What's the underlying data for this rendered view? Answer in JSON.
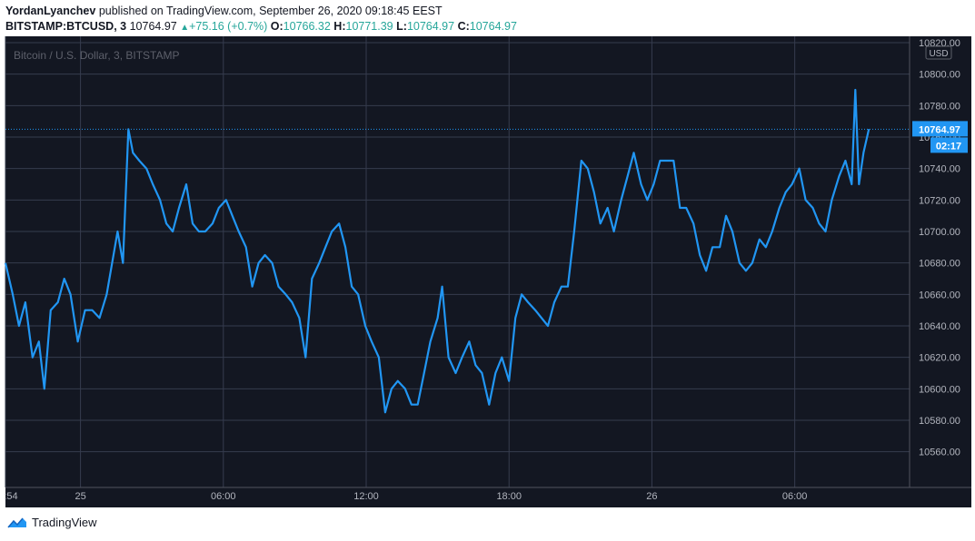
{
  "header": {
    "author": "YordanLyanchev",
    "published_text": "published on TradingView.com, September 26, 2020 09:18:45 EEST"
  },
  "ohlc": {
    "symbol": "BITSTAMP:BTCUSD, 3",
    "last": "10764.97",
    "change": "+75.16 (+0.7%)",
    "o_label": "O:",
    "o": "10766.32",
    "h_label": "H:",
    "h": "10771.39",
    "l_label": "L:",
    "l": "10764.97",
    "c_label": "C:",
    "c": "10764.97"
  },
  "footer": {
    "brand": "TradingView",
    "logo_icon": "tradingview-logo-icon"
  },
  "colors": {
    "background": "#131722",
    "line": "#2196f3",
    "grid": "#363c4e",
    "text": "#b2b5be"
  },
  "chart_data": {
    "type": "line",
    "title": "Bitcoin / U.S. Dollar, 3, BITSTAMP",
    "currency": "USD",
    "price_label": "10764.97",
    "countdown": "02:17",
    "ylim": [
      10550,
      10820
    ],
    "yticks": [
      10560,
      10580,
      10600,
      10620,
      10640,
      10660,
      10680,
      10700,
      10720,
      10740,
      10760,
      10780,
      10800,
      10820
    ],
    "ytick_labels": [
      "10560.00",
      "10580.00",
      "10600.00",
      "10620.00",
      "10640.00",
      "10660.00",
      "10680.00",
      "10700.00",
      "10720.00",
      "10740.00",
      "10760.00",
      "10780.00",
      "10800.00",
      "10820.00"
    ],
    "xlim": [
      0,
      1.0
    ],
    "xticks": [
      {
        "x": 0.0,
        "label": ":54"
      },
      {
        "x": 0.083,
        "label": "25"
      },
      {
        "x": 0.241,
        "label": "06:00"
      },
      {
        "x": 0.399,
        "label": "12:00"
      },
      {
        "x": 0.557,
        "label": "18:00"
      },
      {
        "x": 0.715,
        "label": "26"
      },
      {
        "x": 0.873,
        "label": "06:00"
      }
    ],
    "series": [
      {
        "values": [
          [
            0.0,
            10680
          ],
          [
            0.008,
            10660
          ],
          [
            0.015,
            10640
          ],
          [
            0.022,
            10655
          ],
          [
            0.03,
            10620
          ],
          [
            0.037,
            10630
          ],
          [
            0.043,
            10600
          ],
          [
            0.05,
            10650
          ],
          [
            0.058,
            10655
          ],
          [
            0.065,
            10670
          ],
          [
            0.072,
            10660
          ],
          [
            0.08,
            10630
          ],
          [
            0.088,
            10650
          ],
          [
            0.096,
            10650
          ],
          [
            0.104,
            10645
          ],
          [
            0.112,
            10660
          ],
          [
            0.118,
            10680
          ],
          [
            0.124,
            10700
          ],
          [
            0.13,
            10680
          ],
          [
            0.136,
            10765
          ],
          [
            0.141,
            10750
          ],
          [
            0.148,
            10745
          ],
          [
            0.156,
            10740
          ],
          [
            0.163,
            10730
          ],
          [
            0.171,
            10720
          ],
          [
            0.178,
            10705
          ],
          [
            0.185,
            10700
          ],
          [
            0.192,
            10715
          ],
          [
            0.2,
            10730
          ],
          [
            0.207,
            10705
          ],
          [
            0.214,
            10700
          ],
          [
            0.221,
            10700
          ],
          [
            0.229,
            10705
          ],
          [
            0.236,
            10715
          ],
          [
            0.244,
            10720
          ],
          [
            0.251,
            10710
          ],
          [
            0.258,
            10700
          ],
          [
            0.266,
            10690
          ],
          [
            0.273,
            10665
          ],
          [
            0.28,
            10680
          ],
          [
            0.287,
            10685
          ],
          [
            0.295,
            10680
          ],
          [
            0.302,
            10665
          ],
          [
            0.31,
            10660
          ],
          [
            0.317,
            10655
          ],
          [
            0.325,
            10645
          ],
          [
            0.332,
            10620
          ],
          [
            0.339,
            10670
          ],
          [
            0.347,
            10680
          ],
          [
            0.354,
            10690
          ],
          [
            0.361,
            10700
          ],
          [
            0.369,
            10705
          ],
          [
            0.376,
            10690
          ],
          [
            0.383,
            10665
          ],
          [
            0.39,
            10660
          ],
          [
            0.398,
            10640
          ],
          [
            0.405,
            10630
          ],
          [
            0.413,
            10620
          ],
          [
            0.42,
            10585
          ],
          [
            0.427,
            10600
          ],
          [
            0.434,
            10605
          ],
          [
            0.442,
            10600
          ],
          [
            0.449,
            10590
          ],
          [
            0.456,
            10590
          ],
          [
            0.463,
            10610
          ],
          [
            0.47,
            10630
          ],
          [
            0.478,
            10645
          ],
          [
            0.483,
            10665
          ],
          [
            0.49,
            10620
          ],
          [
            0.498,
            10610
          ],
          [
            0.505,
            10620
          ],
          [
            0.513,
            10630
          ],
          [
            0.52,
            10615
          ],
          [
            0.527,
            10610
          ],
          [
            0.535,
            10590
          ],
          [
            0.542,
            10610
          ],
          [
            0.549,
            10620
          ],
          [
            0.557,
            10605
          ],
          [
            0.564,
            10645
          ],
          [
            0.571,
            10660
          ],
          [
            0.578,
            10655
          ],
          [
            0.586,
            10650
          ],
          [
            0.593,
            10645
          ],
          [
            0.6,
            10640
          ],
          [
            0.607,
            10655
          ],
          [
            0.615,
            10665
          ],
          [
            0.622,
            10665
          ],
          [
            0.629,
            10700
          ],
          [
            0.637,
            10745
          ],
          [
            0.644,
            10740
          ],
          [
            0.651,
            10725
          ],
          [
            0.658,
            10705
          ],
          [
            0.666,
            10715
          ],
          [
            0.673,
            10700
          ],
          [
            0.681,
            10720
          ],
          [
            0.688,
            10735
          ],
          [
            0.695,
            10750
          ],
          [
            0.703,
            10730
          ],
          [
            0.71,
            10720
          ],
          [
            0.717,
            10730
          ],
          [
            0.724,
            10745
          ],
          [
            0.732,
            10745
          ],
          [
            0.739,
            10745
          ],
          [
            0.746,
            10715
          ],
          [
            0.753,
            10715
          ],
          [
            0.761,
            10705
          ],
          [
            0.768,
            10685
          ],
          [
            0.775,
            10675
          ],
          [
            0.782,
            10690
          ],
          [
            0.79,
            10690
          ],
          [
            0.797,
            10710
          ],
          [
            0.804,
            10700
          ],
          [
            0.812,
            10680
          ],
          [
            0.819,
            10675
          ],
          [
            0.826,
            10680
          ],
          [
            0.834,
            10695
          ],
          [
            0.841,
            10690
          ],
          [
            0.848,
            10700
          ],
          [
            0.856,
            10715
          ],
          [
            0.863,
            10725
          ],
          [
            0.87,
            10730
          ],
          [
            0.878,
            10740
          ],
          [
            0.885,
            10720
          ],
          [
            0.893,
            10715
          ],
          [
            0.9,
            10705
          ],
          [
            0.907,
            10700
          ],
          [
            0.914,
            10720
          ],
          [
            0.922,
            10735
          ],
          [
            0.929,
            10745
          ],
          [
            0.936,
            10730
          ],
          [
            0.94,
            10790
          ],
          [
            0.944,
            10730
          ],
          [
            0.949,
            10750
          ],
          [
            0.955,
            10765
          ]
        ]
      }
    ]
  }
}
